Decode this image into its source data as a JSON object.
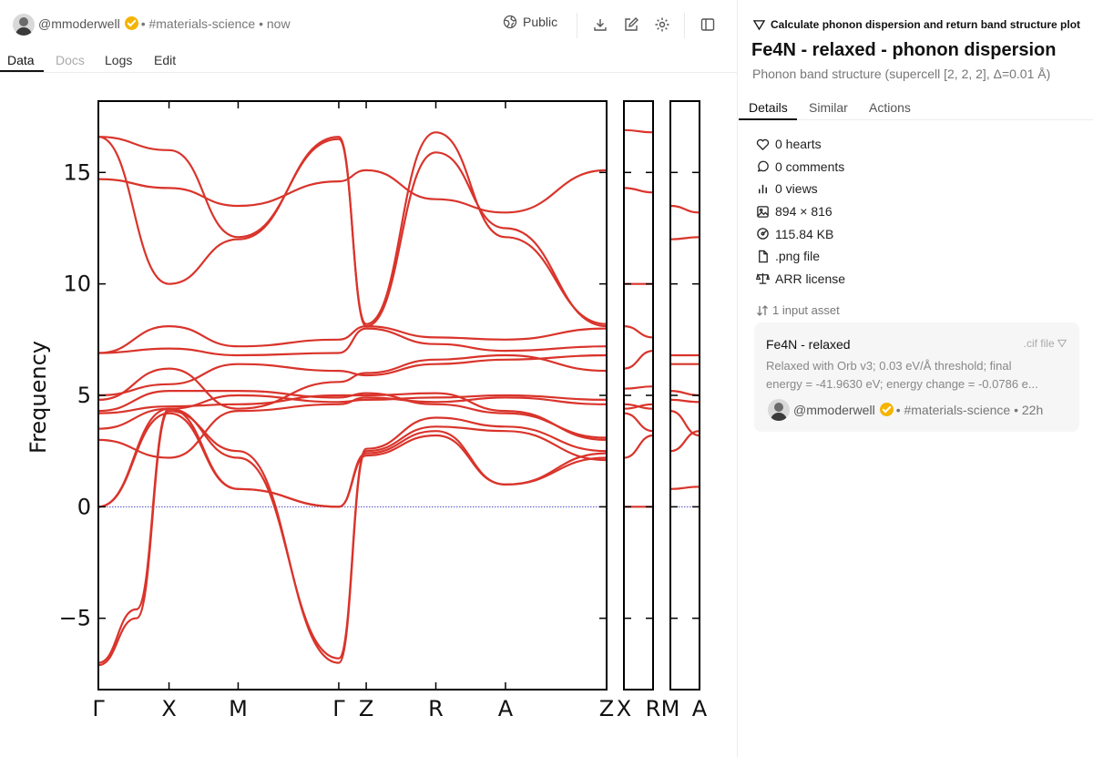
{
  "header": {
    "username": "@mmoderwell",
    "meta": "• #materials-science • now",
    "visibility": "Public"
  },
  "tabs": [
    "Data",
    "Docs",
    "Logs",
    "Edit"
  ],
  "active_tab": "Data",
  "task": {
    "title": "Calculate phonon dispersion and return band structure plot"
  },
  "asset": {
    "title": "Fe4N - relaxed - phonon dispersion",
    "subtitle": "Phonon band structure (supercell [2, 2, 2], Δ=0.01 Å)"
  },
  "detail_tabs": [
    "Details",
    "Similar",
    "Actions"
  ],
  "meta": {
    "hearts": "0 hearts",
    "comments": "0 comments",
    "views": "0 views",
    "dimensions": "894 × 816",
    "size": "115.84 KB",
    "filetype": ".png file",
    "license": "ARR license"
  },
  "inputs": {
    "label": "1 input asset",
    "card": {
      "title": "Fe4N - relaxed",
      "type": ".cif file",
      "desc_line1": "Relaxed with Orb v3; 0.03 eV/Å threshold; final",
      "desc_line2": "energy = -41.9630 eV; energy change = -0.0786 e...",
      "username": "@mmoderwell",
      "meta": "• #materials-science • 22h"
    }
  },
  "colors": {
    "band": "#d9342b",
    "zero_line": "#4a4ac8",
    "verified": "#f4b400"
  },
  "chart_data": {
    "type": "line",
    "ylabel": "Frequency",
    "ylim": [
      -8.2,
      18.2
    ],
    "yticks": [
      -5,
      0,
      5,
      10,
      15
    ],
    "ytick_labels": [
      "−5",
      "0",
      "5",
      "10",
      "15"
    ],
    "panels": [
      {
        "xlabels": [
          "Γ",
          "X",
          "M",
          "Γ",
          "Z",
          "R",
          "A",
          "Z"
        ],
        "xpos": [
          0,
          0.139,
          0.275,
          0.473,
          0.527,
          0.664,
          0.801,
          1.0
        ]
      },
      {
        "xlabels": [
          "X",
          "R"
        ],
        "xpos": [
          0,
          1
        ]
      },
      {
        "xlabels": [
          "M",
          "A"
        ],
        "xpos": [
          0,
          1
        ]
      }
    ],
    "series": [
      {
        "panel": 0,
        "x": [
          0,
          0.139,
          0.275,
          0.473,
          0.527,
          0.664,
          0.801,
          1.0
        ],
        "y": [
          0,
          4.2,
          0.8,
          0,
          2.3,
          3.2,
          1.0,
          2.2
        ]
      },
      {
        "panel": 0,
        "x": [
          0,
          0.139,
          0.275,
          0.473,
          0.527,
          0.664,
          0.801,
          1.0
        ],
        "y": [
          0,
          4.4,
          0.8,
          0,
          2.4,
          3.4,
          1.0,
          2.4
        ]
      },
      {
        "panel": 0,
        "x": [
          0,
          0.075,
          0.139,
          0.275,
          0.473,
          0.527,
          0.664,
          0.801,
          1.0
        ],
        "y": [
          -7.1,
          -5.0,
          4.3,
          2.5,
          -7.0,
          2.5,
          3.6,
          3.4,
          2.1
        ]
      },
      {
        "panel": 0,
        "x": [
          0,
          0.075,
          0.139,
          0.275,
          0.473,
          0.527,
          0.664,
          0.801,
          1.0
        ],
        "y": [
          -7.0,
          -4.6,
          4.4,
          2.2,
          -6.8,
          2.6,
          4.0,
          3.6,
          2.5
        ]
      },
      {
        "panel": 0,
        "x": [
          0,
          0.139,
          0.275,
          0.473,
          0.527,
          0.664,
          0.801,
          1.0
        ],
        "y": [
          3.0,
          2.2,
          4.3,
          4.6,
          4.9,
          4.7,
          4.9,
          4.6
        ]
      },
      {
        "panel": 0,
        "x": [
          0,
          0.139,
          0.275,
          0.473,
          0.527,
          0.664,
          0.801,
          1.0
        ],
        "y": [
          3.5,
          4.4,
          5.0,
          4.7,
          4.8,
          4.9,
          5.0,
          4.8
        ]
      },
      {
        "panel": 0,
        "x": [
          0,
          0.139,
          0.275,
          0.473,
          0.527,
          0.664,
          0.801,
          1.0
        ],
        "y": [
          4.2,
          4.5,
          4.6,
          5.0,
          5.0,
          5.1,
          4.3,
          3.0
        ]
      },
      {
        "panel": 0,
        "x": [
          0,
          0.139,
          0.275,
          0.473,
          0.527,
          0.664,
          0.801,
          1.0
        ],
        "y": [
          4.3,
          5.2,
          5.2,
          4.9,
          5.1,
          4.6,
          4.2,
          3.1
        ]
      },
      {
        "panel": 0,
        "x": [
          0,
          0.139,
          0.275,
          0.473,
          0.527,
          0.664,
          0.801,
          1.0
        ],
        "y": [
          4.8,
          6.2,
          4.4,
          5.6,
          6.0,
          6.6,
          6.8,
          6.1
        ]
      },
      {
        "panel": 0,
        "x": [
          0,
          0.139,
          0.275,
          0.473,
          0.527,
          0.664,
          0.801,
          1.0
        ],
        "y": [
          5.0,
          5.5,
          6.4,
          6.1,
          5.9,
          6.4,
          6.6,
          6.8
        ]
      },
      {
        "panel": 0,
        "x": [
          0,
          0.139,
          0.275,
          0.473,
          0.527,
          0.664,
          0.801,
          1.0
        ],
        "y": [
          6.9,
          7.1,
          6.8,
          6.9,
          8.0,
          7.3,
          7.0,
          7.2
        ]
      },
      {
        "panel": 0,
        "x": [
          0,
          0.139,
          0.275,
          0.473,
          0.527,
          0.664,
          0.801,
          1.0
        ],
        "y": [
          6.9,
          8.1,
          7.2,
          7.5,
          8.1,
          7.6,
          7.5,
          8.0
        ]
      },
      {
        "panel": 0,
        "x": [
          0,
          0.139,
          0.275,
          0.473,
          0.527,
          0.664,
          0.801,
          1.0
        ],
        "y": [
          14.7,
          14.3,
          13.5,
          14.6,
          15.1,
          13.8,
          13.2,
          15.1
        ]
      },
      {
        "panel": 0,
        "x": [
          0,
          0.139,
          0.275,
          0.473,
          0.527,
          0.664,
          0.801,
          1.0
        ],
        "y": [
          16.6,
          16.0,
          12.1,
          16.5,
          8.2,
          16.8,
          12.1,
          8.2
        ]
      },
      {
        "panel": 0,
        "x": [
          0,
          0.139,
          0.275,
          0.473,
          0.527,
          0.664,
          0.801,
          1.0
        ],
        "y": [
          16.6,
          10.0,
          12.0,
          16.6,
          8.1,
          15.9,
          12.5,
          8.1
        ]
      },
      {
        "panel": 1,
        "x": [
          0,
          1
        ],
        "y": [
          16.9,
          16.8
        ]
      },
      {
        "panel": 1,
        "x": [
          0,
          1
        ],
        "y": [
          14.3,
          14.1
        ]
      },
      {
        "panel": 1,
        "x": [
          0,
          1
        ],
        "y": [
          10.0,
          10.0
        ]
      },
      {
        "panel": 1,
        "x": [
          0,
          1
        ],
        "y": [
          8.1,
          7.6
        ]
      },
      {
        "panel": 1,
        "x": [
          0,
          1
        ],
        "y": [
          6.2,
          7.0
        ]
      },
      {
        "panel": 1,
        "x": [
          0,
          1
        ],
        "y": [
          5.3,
          5.4
        ]
      },
      {
        "panel": 1,
        "x": [
          0,
          1
        ],
        "y": [
          4.6,
          4.4
        ]
      },
      {
        "panel": 1,
        "x": [
          0,
          1
        ],
        "y": [
          4.2,
          3.4
        ]
      },
      {
        "panel": 1,
        "x": [
          0,
          1
        ],
        "y": [
          4.4,
          4.6
        ]
      },
      {
        "panel": 1,
        "x": [
          0,
          1
        ],
        "y": [
          2.2,
          3.2
        ]
      },
      {
        "panel": 1,
        "x": [
          0,
          1
        ],
        "y": [
          0,
          0
        ]
      },
      {
        "panel": 2,
        "x": [
          0,
          1
        ],
        "y": [
          13.5,
          13.2
        ]
      },
      {
        "panel": 2,
        "x": [
          0,
          1
        ],
        "y": [
          12.0,
          12.1
        ]
      },
      {
        "panel": 2,
        "x": [
          0,
          1
        ],
        "y": [
          6.8,
          6.8
        ]
      },
      {
        "panel": 2,
        "x": [
          0,
          1
        ],
        "y": [
          6.4,
          6.4
        ]
      },
      {
        "panel": 2,
        "x": [
          0,
          1
        ],
        "y": [
          5.2,
          5.0
        ]
      },
      {
        "panel": 2,
        "x": [
          0,
          1
        ],
        "y": [
          4.8,
          4.7
        ]
      },
      {
        "panel": 2,
        "x": [
          0,
          1
        ],
        "y": [
          4.3,
          3.2
        ]
      },
      {
        "panel": 2,
        "x": [
          0,
          1
        ],
        "y": [
          2.5,
          3.4
        ]
      },
      {
        "panel": 2,
        "x": [
          0,
          1
        ],
        "y": [
          0.8,
          0.9
        ]
      }
    ]
  }
}
